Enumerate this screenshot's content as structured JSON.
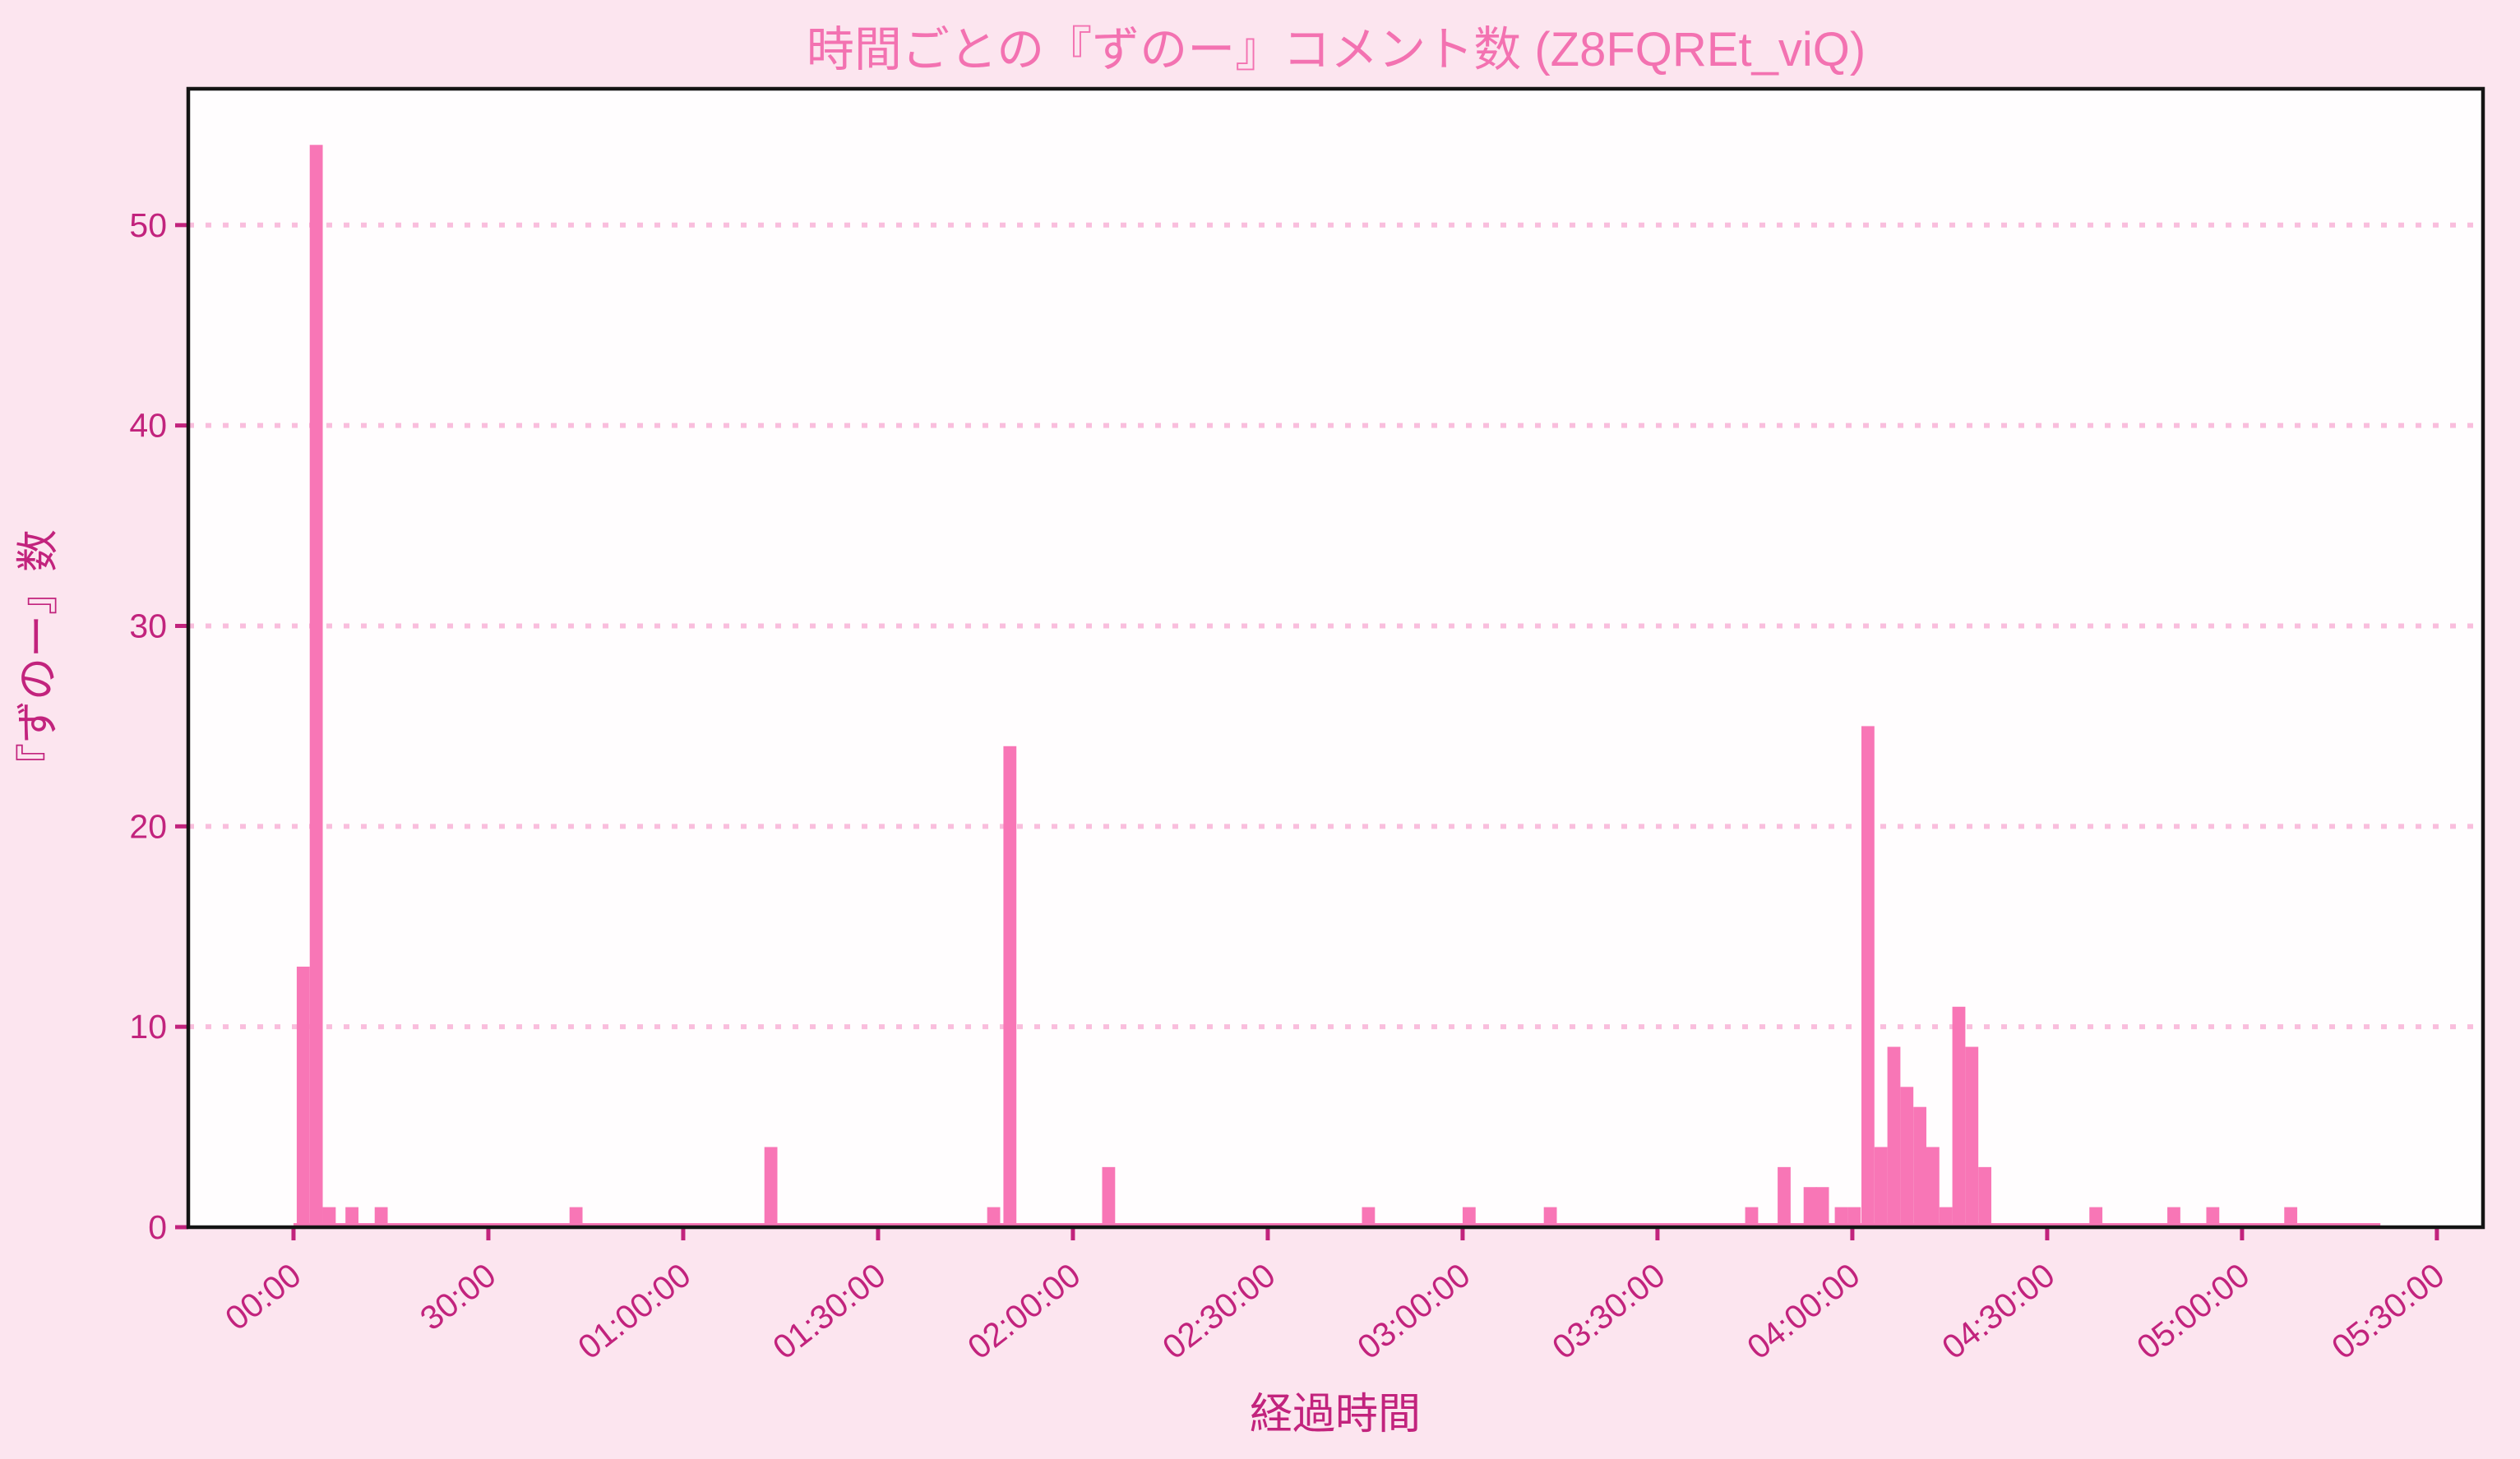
{
  "title": "時間ごとの『ずのー』コメント数 (Z8FQREt_viQ)",
  "colors": {
    "figure_background": "#fce5ef",
    "plot_background": "#fffdfe",
    "bar": "#f876b6",
    "grid": "#f9bedd",
    "tick_and_label": "#c2237d",
    "title": "#f372b1",
    "spine": "#141414"
  },
  "chart_data": {
    "type": "bar",
    "title": "時間ごとの『ずのー』コメント数 (Z8FQREt_viQ)",
    "xlabel": "経過時間",
    "ylabel": "『ずのー』数",
    "legend": null,
    "grid": "horizontal dotted",
    "ylim": [
      0,
      56.8
    ],
    "xlim_minutes": [
      -16.2,
      337.1
    ],
    "yticks": [
      0,
      10,
      20,
      30,
      40,
      50
    ],
    "xticks": [
      {
        "minute": 0,
        "label": "00:00"
      },
      {
        "minute": 30,
        "label": "30:00"
      },
      {
        "minute": 60,
        "label": "01:00:00"
      },
      {
        "minute": 90,
        "label": "01:30:00"
      },
      {
        "minute": 120,
        "label": "02:00:00"
      },
      {
        "minute": 150,
        "label": "02:30:00"
      },
      {
        "minute": 180,
        "label": "03:00:00"
      },
      {
        "minute": 210,
        "label": "03:30:00"
      },
      {
        "minute": 240,
        "label": "04:00:00"
      },
      {
        "minute": 270,
        "label": "04:30:00"
      },
      {
        "minute": 300,
        "label": "05:00:00"
      },
      {
        "minute": 330,
        "label": "05:30:00"
      }
    ],
    "bin_width_minutes": 2,
    "bars": [
      {
        "t": 0.5,
        "n": 13
      },
      {
        "t": 2.5,
        "n": 54
      },
      {
        "t": 4.5,
        "n": 1
      },
      {
        "t": 8.0,
        "n": 1
      },
      {
        "t": 12.5,
        "n": 1
      },
      {
        "t": 42.5,
        "n": 1
      },
      {
        "t": 72.5,
        "n": 4
      },
      {
        "t": 106.8,
        "n": 1
      },
      {
        "t": 109.3,
        "n": 24
      },
      {
        "t": 124.5,
        "n": 3
      },
      {
        "t": 164.5,
        "n": 1
      },
      {
        "t": 180.0,
        "n": 1
      },
      {
        "t": 192.5,
        "n": 1
      },
      {
        "t": 223.5,
        "n": 1
      },
      {
        "t": 228.5,
        "n": 3
      },
      {
        "t": 232.5,
        "n": 2
      },
      {
        "t": 234.4,
        "n": 2
      },
      {
        "t": 237.3,
        "n": 1
      },
      {
        "t": 239.3,
        "n": 1
      },
      {
        "t": 241.4,
        "n": 25
      },
      {
        "t": 243.4,
        "n": 4
      },
      {
        "t": 245.4,
        "n": 9
      },
      {
        "t": 247.4,
        "n": 7
      },
      {
        "t": 249.4,
        "n": 6
      },
      {
        "t": 251.4,
        "n": 4
      },
      {
        "t": 253.4,
        "n": 1
      },
      {
        "t": 255.4,
        "n": 11
      },
      {
        "t": 257.4,
        "n": 9
      },
      {
        "t": 259.4,
        "n": 3
      },
      {
        "t": 276.5,
        "n": 1
      },
      {
        "t": 288.5,
        "n": 1
      },
      {
        "t": 294.5,
        "n": 1
      },
      {
        "t": 306.5,
        "n": 1
      }
    ],
    "zero_baseline_extent_minutes": [
      0,
      321.3
    ]
  }
}
